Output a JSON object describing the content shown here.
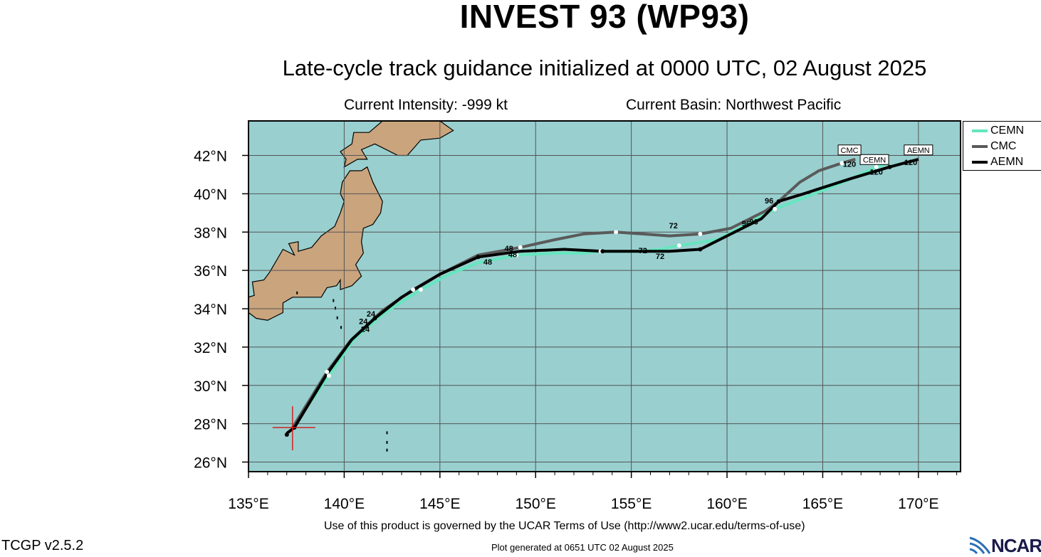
{
  "header": {
    "title": "INVEST 93 (WP93)",
    "subtitle": "Late-cycle track guidance initialized at 0000 UTC, 02 August 2025",
    "intensity": "Current Intensity: -999 kt",
    "basin": "Current Basin: Northwest Pacific"
  },
  "map": {
    "lon_range": [
      135,
      172.2
    ],
    "lat_range": [
      25.5,
      43.8
    ],
    "ocean_color": "#99cfcf",
    "land_color": "#c9a47d",
    "x_ticks": [
      {
        "value": 135,
        "label": "135°E"
      },
      {
        "value": 140,
        "label": "140°E"
      },
      {
        "value": 145,
        "label": "145°E"
      },
      {
        "value": 150,
        "label": "150°E"
      },
      {
        "value": 155,
        "label": "155°E"
      },
      {
        "value": 160,
        "label": "160°E"
      },
      {
        "value": 165,
        "label": "165°E"
      },
      {
        "value": 170,
        "label": "170°E"
      }
    ],
    "y_ticks": [
      {
        "value": 26,
        "label": "26°N"
      },
      {
        "value": 28,
        "label": "28°N"
      },
      {
        "value": 30,
        "label": "30°N"
      },
      {
        "value": 32,
        "label": "32°N"
      },
      {
        "value": 34,
        "label": "34°N"
      },
      {
        "value": 36,
        "label": "36°N"
      },
      {
        "value": 38,
        "label": "38°N"
      },
      {
        "value": 40,
        "label": "40°N"
      },
      {
        "value": 42,
        "label": "42°N"
      }
    ],
    "current_position": {
      "lon": 137.3,
      "lat": 27.8,
      "color": "#d42020"
    }
  },
  "legend": [
    {
      "name": "CEMN",
      "color": "#66e6bf"
    },
    {
      "name": "CMC",
      "color": "#5a5a5a"
    },
    {
      "name": "AEMN",
      "color": "#000000"
    }
  ],
  "tracks": [
    {
      "name": "CEMN",
      "color": "#66e6bf",
      "points": [
        [
          137.2,
          27.7
        ],
        [
          139.2,
          30.5
        ],
        [
          140.5,
          32.4
        ],
        [
          142.0,
          33.7
        ],
        [
          144.0,
          35.0
        ],
        [
          145.5,
          35.8
        ],
        [
          147.0,
          36.4
        ],
        [
          149.0,
          36.8
        ],
        [
          151.0,
          36.9
        ],
        [
          152.6,
          36.9
        ],
        [
          153.4,
          37.0
        ],
        [
          155.5,
          37.0
        ],
        [
          156.5,
          37.1
        ],
        [
          157.5,
          37.3
        ],
        [
          159.5,
          37.6
        ],
        [
          161.0,
          38.4
        ],
        [
          162.5,
          39.2
        ],
        [
          164.3,
          39.9
        ],
        [
          166.3,
          40.7
        ],
        [
          167.8,
          41.4
        ],
        [
          168.5,
          41.6
        ]
      ],
      "labels": [
        {
          "text": "24",
          "lon": 141.1,
          "lat": 32.8
        },
        {
          "text": "48",
          "lon": 148.8,
          "lat": 36.7
        },
        {
          "text": "72",
          "lon": 156.5,
          "lat": 36.6
        },
        {
          "text": "96",
          "lon": 161.4,
          "lat": 38.4
        },
        {
          "text": "120",
          "lon": 167.8,
          "lat": 41.0
        }
      ],
      "box": {
        "text": "CEMN",
        "lon": 167.7,
        "lat": 41.6
      }
    },
    {
      "name": "CMC",
      "color": "#5a5a5a",
      "points": [
        [
          137.3,
          27.8
        ],
        [
          139.1,
          30.7
        ],
        [
          140.3,
          32.3
        ],
        [
          142.0,
          33.9
        ],
        [
          143.6,
          35.0
        ],
        [
          145.0,
          35.8
        ],
        [
          147.0,
          36.8
        ],
        [
          149.2,
          37.2
        ],
        [
          151.0,
          37.6
        ],
        [
          152.5,
          37.9
        ],
        [
          154.2,
          38.0
        ],
        [
          155.6,
          37.9
        ],
        [
          157.0,
          37.8
        ],
        [
          158.6,
          37.9
        ],
        [
          160.2,
          38.2
        ],
        [
          162.0,
          39.1
        ],
        [
          162.7,
          39.6
        ],
        [
          163.8,
          40.6
        ],
        [
          164.8,
          41.2
        ],
        [
          166.0,
          41.6
        ],
        [
          166.7,
          41.8
        ]
      ],
      "labels": [
        {
          "text": "24",
          "lon": 141.4,
          "lat": 33.6
        },
        {
          "text": "48",
          "lon": 148.6,
          "lat": 37.0
        },
        {
          "text": "72",
          "lon": 157.2,
          "lat": 38.2
        },
        {
          "text": "96",
          "lon": 162.2,
          "lat": 39.5
        },
        {
          "text": "120",
          "lon": 166.4,
          "lat": 41.4
        }
      ],
      "box": {
        "text": "CMC",
        "lon": 166.4,
        "lat": 42.1
      }
    },
    {
      "name": "AEMN",
      "color": "#000000",
      "points": [
        [
          137.0,
          27.5
        ],
        [
          137.4,
          27.8
        ],
        [
          139.1,
          30.6
        ],
        [
          140.4,
          32.4
        ],
        [
          141.6,
          33.5
        ],
        [
          143.0,
          34.6
        ],
        [
          145.0,
          35.8
        ],
        [
          147.0,
          36.7
        ],
        [
          149.2,
          37.0
        ],
        [
          151.5,
          37.1
        ],
        [
          153.5,
          37.0
        ],
        [
          156.4,
          37.0
        ],
        [
          157.0,
          37.0
        ],
        [
          158.6,
          37.1
        ],
        [
          160.0,
          37.8
        ],
        [
          161.8,
          38.7
        ],
        [
          162.7,
          39.6
        ],
        [
          164.0,
          40.0
        ],
        [
          166.5,
          40.8
        ],
        [
          168.5,
          41.4
        ],
        [
          170.0,
          41.8
        ]
      ],
      "labels": [
        {
          "text": "24",
          "lon": 141.0,
          "lat": 33.2
        },
        {
          "text": "48",
          "lon": 147.5,
          "lat": 36.3
        },
        {
          "text": "72",
          "lon": 155.6,
          "lat": 36.9
        },
        {
          "text": "96",
          "lon": 161.0,
          "lat": 38.3
        },
        {
          "text": "120",
          "lon": 169.6,
          "lat": 41.5
        }
      ],
      "box": {
        "text": "AEMN",
        "lon": 170.0,
        "lat": 42.1
      }
    }
  ],
  "footer": {
    "terms": "Use of this product is governed by the UCAR Terms of Use (http://www2.ucar.edu/terms-of-use)",
    "version": "TCGP v2.5.2",
    "generated": "Plot generated at 0651 UTC   02 August 2025",
    "logo_text": "NCAR"
  }
}
